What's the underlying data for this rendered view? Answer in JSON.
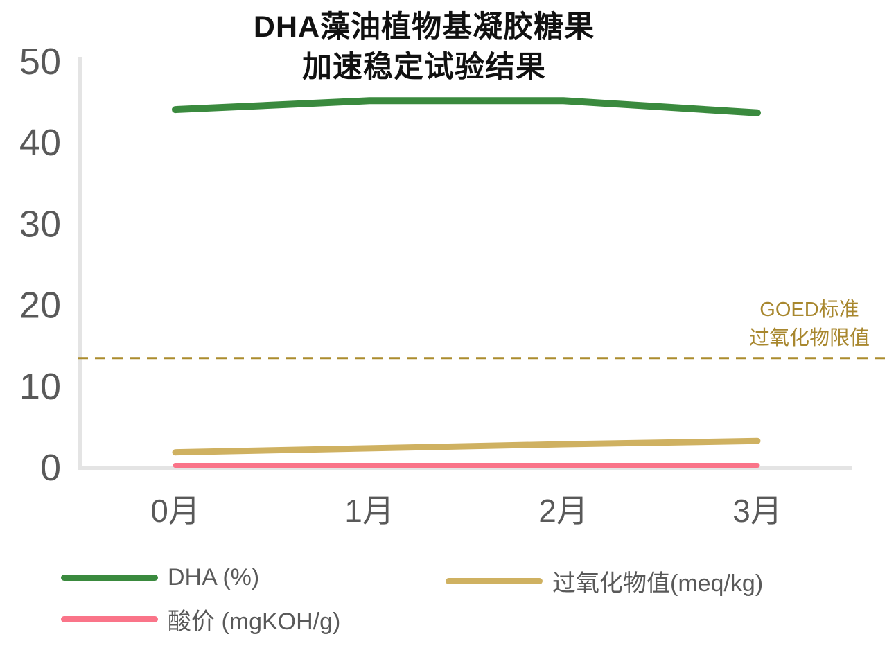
{
  "page": {
    "background": "#ffffff"
  },
  "chart_data": {
    "type": "line",
    "title_lines": [
      "DHA藻油植物基凝胶糖果",
      "加速稳定试验结果"
    ],
    "categories": [
      "0月",
      "1月",
      "2月",
      "3月"
    ],
    "series": [
      {
        "name": "DHA (%)",
        "values": [
          44.1,
          45.2,
          45.2,
          43.7
        ],
        "color": "#3a8a3e",
        "stroke_width": 10
      },
      {
        "name": "过氧化物值(meq/kg)",
        "values": [
          1.9,
          2.4,
          2.9,
          3.3
        ],
        "color": "#cfb161",
        "stroke_width": 9
      },
      {
        "name": "酸价 (mgKOH/g)",
        "values": [
          0.3,
          0.3,
          0.3,
          0.3
        ],
        "color": "#fa7489",
        "stroke_width": 7
      }
    ],
    "y_ticks": [
      0,
      10,
      20,
      30,
      40,
      50
    ],
    "ylim": [
      0,
      50
    ],
    "xlabel": "",
    "ylabel": "",
    "grid": false,
    "legend_position": "bottom-left-two-columns",
    "reference_line": {
      "value": 13.5,
      "style": "dashed",
      "color": "#ab8c2d",
      "label_lines": [
        "GOED标准",
        "过氧化物限值"
      ],
      "label_color": "#a8872e"
    }
  },
  "style_colors": {
    "axis_line": "#e4e4e4",
    "tick_text": "#595959",
    "title_text": "#111111",
    "legend_text": "#595959"
  }
}
